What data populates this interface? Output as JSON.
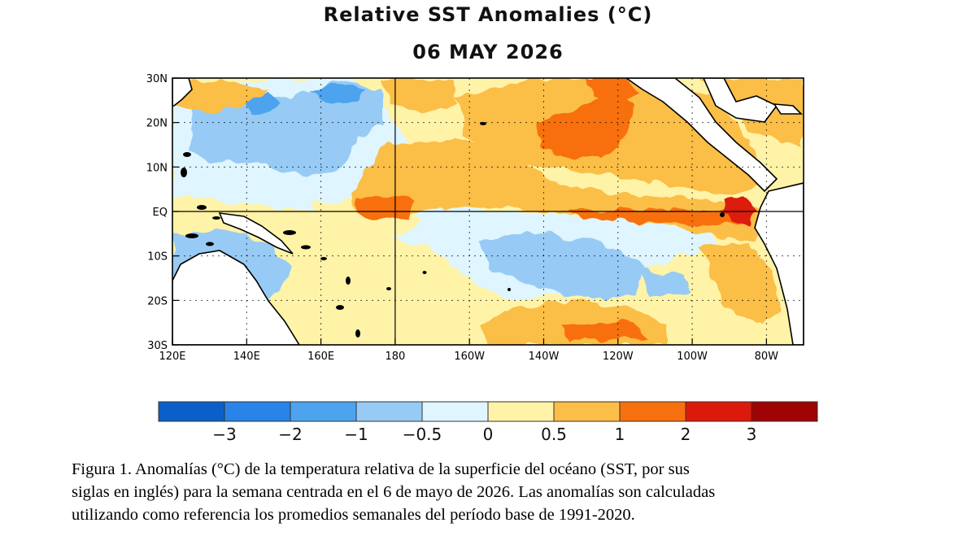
{
  "title": "Relative SST Anomalies (°C)",
  "date": "06 MAY 2026",
  "map": {
    "lat_labels": [
      "30N",
      "20N",
      "10N",
      "EQ",
      "10S",
      "20S",
      "30S"
    ],
    "lon_labels": [
      "120E",
      "140E",
      "160E",
      "180",
      "160W",
      "140W",
      "120W",
      "100W",
      "80W"
    ],
    "lon_range": [
      120,
      290
    ],
    "lat_range": [
      -30,
      30
    ]
  },
  "colorbar": {
    "colors": [
      "#0c5fc8",
      "#2a83e6",
      "#4ea3ee",
      "#97cbf5",
      "#dff5ff",
      "#fff3a8",
      "#fbbe47",
      "#f7700e",
      "#dc1a0c",
      "#a00303"
    ],
    "tick_labels": [
      "−3",
      "−2",
      "−1",
      "−0.5",
      "0",
      "0.5",
      "1",
      "2",
      "3"
    ]
  },
  "caption": {
    "lines": [
      "Figura 1. Anomalías (°C) de la temperatura relativa de la superficie del océano (SST, por sus",
      "siglas en inglés) para la semana centrada en el 6 de mayo de 2026. Las anomalías son calculadas",
      "utilizando como referencia los promedios semanales del período base de 1991-2020."
    ]
  }
}
